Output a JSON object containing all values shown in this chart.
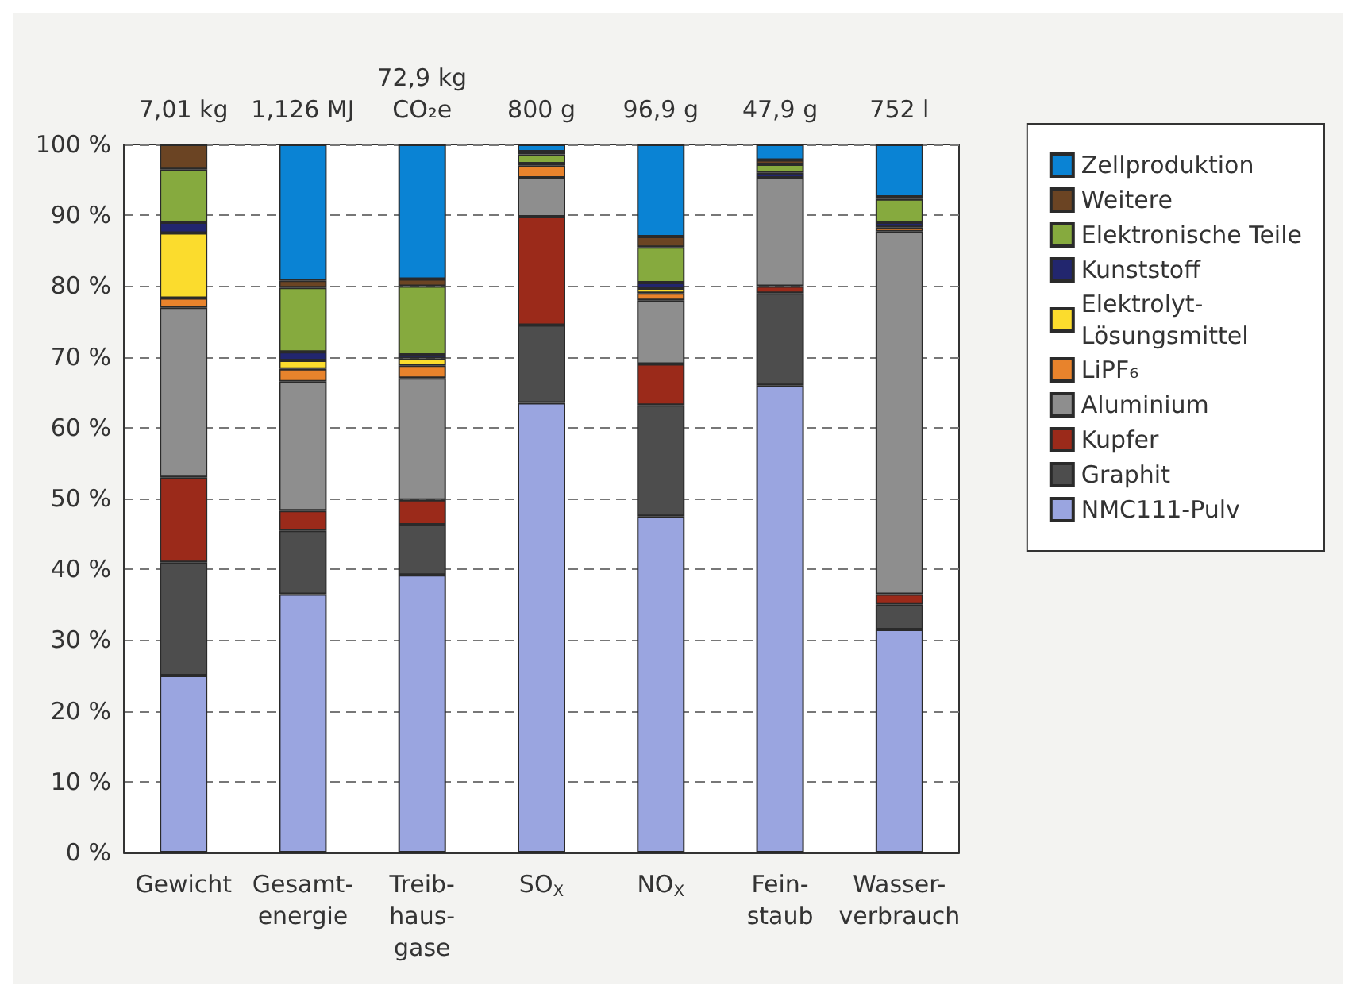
{
  "chart_data": {
    "type": "bar",
    "stacked": true,
    "grid": "y",
    "legend": "right",
    "categories": [
      "Gewicht",
      "Gesamt-\nenergie",
      "Treib-\nhaus-\ngase",
      "SO$_{X}$",
      "NO$_{X}$",
      "Fein-\nstaub",
      "Wasser-\nverbrauch"
    ],
    "annotations": [
      "7,01 kg",
      "1,126 MJ",
      "72,9 kg\nCO₂e",
      "800 g",
      "96,9 g",
      "47,9 g",
      "752 l"
    ],
    "ylim": [
      0,
      100
    ],
    "yticks": [
      {
        "value": 0,
        "label": "0 %"
      },
      {
        "value": 10,
        "label": "10 %"
      },
      {
        "value": 20,
        "label": "20 %"
      },
      {
        "value": 30,
        "label": "30 %"
      },
      {
        "value": 40,
        "label": "40 %"
      },
      {
        "value": 50,
        "label": "50 %"
      },
      {
        "value": 60,
        "label": "60 %"
      },
      {
        "value": 70,
        "label": "70 %"
      },
      {
        "value": 80,
        "label": "80 %"
      },
      {
        "value": 90,
        "label": "90 %"
      },
      {
        "value": 100,
        "label": "100 %"
      }
    ],
    "series": [
      {
        "name": "NMC111-Pulv",
        "color": "#9aa5e0",
        "values": [
          25,
          36.5,
          39.2,
          63.5,
          47.5,
          66,
          31.5
        ]
      },
      {
        "name": "Graphit",
        "color": "#4d4d4d",
        "values": [
          16,
          9,
          7.1,
          11,
          15.7,
          13,
          3.5
        ]
      },
      {
        "name": "Kupfer",
        "color": "#9b2a1a",
        "values": [
          12,
          2.8,
          3.5,
          15.3,
          5.8,
          1,
          1.5
        ]
      },
      {
        "name": "Aluminium",
        "color": "#8e8e8e",
        "values": [
          24,
          18.2,
          17.2,
          5.5,
          9,
          15.3,
          51.2
        ]
      },
      {
        "name": "LiPF₆",
        "color": "#e8832c",
        "values": [
          1.3,
          1.8,
          1.8,
          1.7,
          1,
          null,
          0.6
        ]
      },
      {
        "name": "Elektrolyt-\nLösungsmittel",
        "color": "#fbdc2d",
        "values": [
          9.2,
          1.2,
          1,
          null,
          0.7,
          null,
          null
        ]
      },
      {
        "name": "Kunststoff",
        "color": "#22266e",
        "values": [
          1.5,
          1.2,
          0.5,
          0.3,
          0.8,
          0.7,
          0.7
        ]
      },
      {
        "name": "Elektronische Teile",
        "color": "#86aa3e",
        "values": [
          7.5,
          9.1,
          9.7,
          1.3,
          5,
          1.2,
          3.3
        ]
      },
      {
        "name": "Weitere",
        "color": "#6b4423",
        "values": [
          3.5,
          1,
          1,
          0.4,
          1.5,
          0.6,
          0.3
        ]
      },
      {
        "name": "Zellproduktion",
        "color": "#0a83d4",
        "values": [
          null,
          19.2,
          19,
          1,
          13,
          2.2,
          7.4
        ]
      }
    ]
  }
}
